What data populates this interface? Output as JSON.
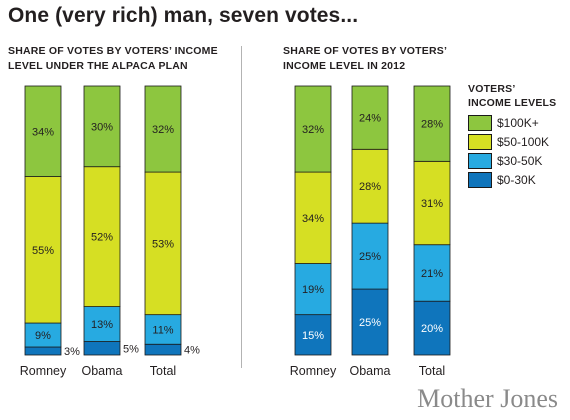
{
  "title": "One (very rich) man, seven votes...",
  "brand": "Mother Jones",
  "legend": {
    "title_line1": "Voters’",
    "title_line2": "income levels",
    "items": [
      {
        "label": "$100K+",
        "color": "#8dc63f"
      },
      {
        "label": "$50-100K",
        "color": "#d6df23"
      },
      {
        "label": "$30-50K",
        "color": "#27aae1"
      },
      {
        "label": "$0-30K",
        "color": "#0f75bc"
      }
    ]
  },
  "chart_data": [
    {
      "type": "bar",
      "stacked": true,
      "title": "Share of votes by voters’ income level under the Alpaca plan",
      "categories": [
        "Romney",
        "Obama",
        "Total"
      ],
      "series": [
        {
          "name": "$0-30K",
          "values": [
            3,
            5,
            4
          ],
          "labels": [
            "3%",
            "5%",
            "4%"
          ]
        },
        {
          "name": "$30-50K",
          "values": [
            9,
            13,
            11
          ],
          "labels": [
            "9%",
            "13%",
            "11%"
          ]
        },
        {
          "name": "$50-100K",
          "values": [
            55,
            52,
            53
          ],
          "labels": [
            "55%",
            "52%",
            "53%"
          ]
        },
        {
          "name": "$100K+",
          "values": [
            34,
            30,
            32
          ],
          "labels": [
            "34%",
            "30%",
            "32%"
          ]
        }
      ],
      "ylim": [
        0,
        100
      ]
    },
    {
      "type": "bar",
      "stacked": true,
      "title": "Share of votes by voters’ income level in 2012",
      "categories": [
        "Romney",
        "Obama",
        "Total"
      ],
      "series": [
        {
          "name": "$0-30K",
          "values": [
            15,
            25,
            20
          ],
          "labels": [
            "15%",
            "25%",
            "20%"
          ]
        },
        {
          "name": "$30-50K",
          "values": [
            19,
            25,
            21
          ],
          "labels": [
            "19%",
            "25%",
            "21%"
          ]
        },
        {
          "name": "$50-100K",
          "values": [
            34,
            28,
            31
          ],
          "labels": [
            "34%",
            "28%",
            "31%"
          ]
        },
        {
          "name": "$100K+",
          "values": [
            32,
            24,
            28
          ],
          "labels": [
            "32%",
            "24%",
            "28%"
          ]
        }
      ],
      "ylim": [
        0,
        100
      ]
    }
  ]
}
